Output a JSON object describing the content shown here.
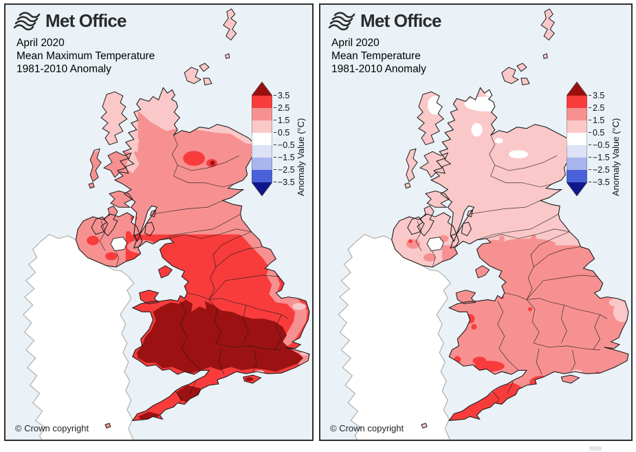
{
  "panels": [
    {
      "brand": "Met Office",
      "title_lines": [
        "April 2020",
        "Mean Maximum Temperature",
        "1981-2010 Anomaly"
      ],
      "copyright": "© Crown copyright",
      "map_variant": "max_temp"
    },
    {
      "brand": "Met Office",
      "title_lines": [
        "April 2020",
        "Mean Temperature",
        "1981-2010 Anomaly"
      ],
      "copyright": "© Crown copyright",
      "map_variant": "mean_temp"
    }
  ],
  "legend": {
    "title": "Anomaly Value (°C)",
    "tick_labels": [
      "3.5",
      "2.5",
      "1.5",
      "0.5",
      "−0.5",
      "−1.5",
      "−2.5",
      "−3.5"
    ],
    "band_colors": [
      "#f83c3c",
      "#f79191",
      "#fac8c8",
      "#ffffff",
      "#dde2f7",
      "#a9b5ef",
      "#4a61da"
    ],
    "arrow_top_color": "#9b0f0f",
    "arrow_bottom_color": "#10168c"
  },
  "map_colors": {
    "sea": "#eaf2f7",
    "ireland_fill": "#ffffff",
    "ireland_stroke": "#a8a8a8",
    "coast_stroke": "#1a1a1a",
    "dark_red": "#9c1212",
    "red": "#f83c3c",
    "salmon": "#f79191",
    "light_pink": "#fac8c8",
    "white_band": "#ffffff"
  }
}
